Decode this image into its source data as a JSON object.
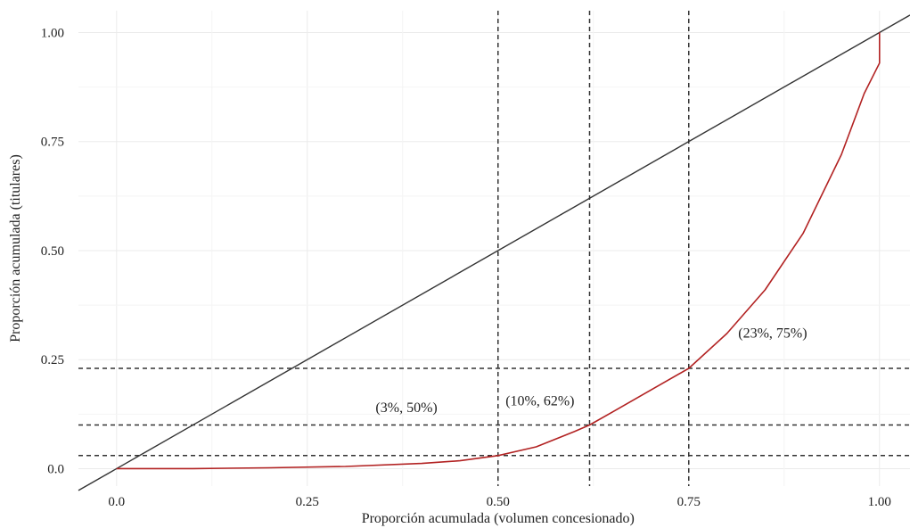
{
  "chart_data": {
    "type": "line",
    "title": "",
    "xlabel": "Proporción acumulada (volumen concesionado)",
    "ylabel": "Proporción acumulada (titulares)",
    "xlim": [
      -0.05,
      1.04
    ],
    "ylim": [
      -0.04,
      1.05
    ],
    "grid": true,
    "colors": {
      "background": "#ffffff",
      "grid": "#ebebeb",
      "equality_line": "#333333",
      "lorenz_curve": "#b22222",
      "reference_lines": "#333333"
    },
    "x_ticks": [
      {
        "value": 0.0,
        "label": "0.0"
      },
      {
        "value": 0.25,
        "label": "0.25"
      },
      {
        "value": 0.5,
        "label": "0.50"
      },
      {
        "value": 0.75,
        "label": "0.75"
      },
      {
        "value": 1.0,
        "label": "1.00"
      }
    ],
    "y_ticks": [
      {
        "value": 0.0,
        "label": "0.0"
      },
      {
        "value": 0.25,
        "label": "0.25"
      },
      {
        "value": 0.5,
        "label": "0.50"
      },
      {
        "value": 0.75,
        "label": "0.75"
      },
      {
        "value": 1.0,
        "label": "1.00"
      }
    ],
    "series": [
      {
        "style": "equality",
        "x": [
          -0.05,
          1.04
        ],
        "y": [
          -0.05,
          1.04
        ]
      },
      {
        "style": "lorenz",
        "x": [
          0.0,
          0.1,
          0.2,
          0.3,
          0.4,
          0.45,
          0.5,
          0.55,
          0.6,
          0.62,
          0.65,
          0.7,
          0.75,
          0.8,
          0.85,
          0.9,
          0.95,
          0.98,
          1.0,
          1.0
        ],
        "y": [
          0.0,
          0.0,
          0.002,
          0.005,
          0.012,
          0.018,
          0.03,
          0.05,
          0.085,
          0.1,
          0.13,
          0.18,
          0.23,
          0.31,
          0.41,
          0.54,
          0.72,
          0.86,
          0.93,
          1.0
        ]
      }
    ],
    "reference_lines": {
      "vertical": [
        0.5,
        0.62,
        0.75
      ],
      "horizontal": [
        0.03,
        0.1,
        0.23
      ]
    },
    "annotations": [
      {
        "text": "(3%, 50%)",
        "x": 0.38,
        "y": 0.13
      },
      {
        "text": "(10%, 62%)",
        "x": 0.555,
        "y": 0.145
      },
      {
        "text": "(23%, 75%)",
        "x": 0.86,
        "y": 0.3
      }
    ]
  }
}
